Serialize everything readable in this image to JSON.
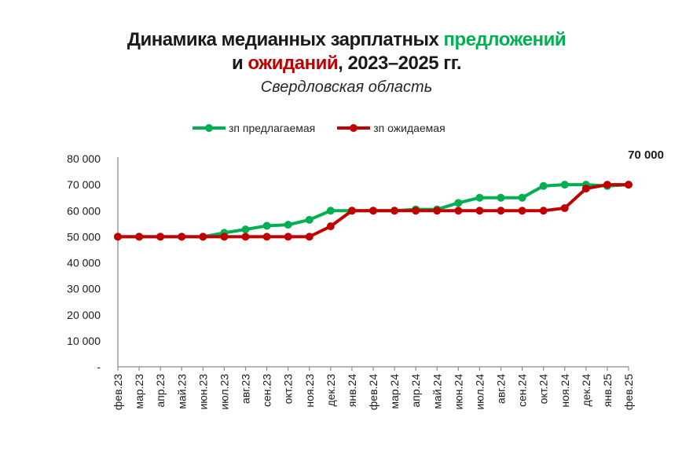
{
  "title": {
    "line1_prefix": "Динамика медианных зарплатных ",
    "line1_green": "предложений",
    "line2_prefix": "и ",
    "line2_red": "ожиданий",
    "line2_suffix": ", 2023–2025 гг.",
    "subtitle": "Свердловская область"
  },
  "legend": [
    {
      "label": "зп предлагаемая",
      "color": "#00B050"
    },
    {
      "label": "зп ожидаемая",
      "color": "#C00000"
    }
  ],
  "callout": "70 000",
  "chart_data": {
    "type": "line",
    "title": "Динамика медианных зарплатных предложений и ожиданий, 2023–2025 гг.",
    "subtitle": "Свердловская область",
    "xlabel": "",
    "ylabel": "",
    "ylim": [
      0,
      80000
    ],
    "yticks": [
      "-",
      "10 000",
      "20 000",
      "30 000",
      "40 000",
      "50 000",
      "60 000",
      "70 000",
      "80 000"
    ],
    "grid": false,
    "legend_position": "top",
    "categories": [
      "фев.23",
      "мар.23",
      "апр.23",
      "май.23",
      "июн.23",
      "июл.23",
      "авг.23",
      "сен.23",
      "окт.23",
      "ноя.23",
      "дек.23",
      "янв.24",
      "фев.24",
      "мар.24",
      "апр.24",
      "май.24",
      "июн.24",
      "июл.24",
      "авг.24",
      "сен.24",
      "окт.24",
      "ноя.24",
      "дек.24",
      "янв.25",
      "фев.25"
    ],
    "series": [
      {
        "name": "зп предлагаемая",
        "color": "#00B050",
        "values": [
          50000,
          50000,
          50000,
          50000,
          50000,
          51500,
          52800,
          54200,
          54600,
          56500,
          60000,
          60000,
          60000,
          60000,
          60500,
          60500,
          63000,
          65000,
          65000,
          65000,
          69500,
          70000,
          70000,
          69500,
          70000
        ]
      },
      {
        "name": "зп ожидаемая",
        "color": "#C00000",
        "values": [
          50000,
          50000,
          50000,
          50000,
          50000,
          50000,
          50000,
          50000,
          50000,
          50000,
          54000,
          60000,
          60000,
          60000,
          60000,
          60000,
          60000,
          60000,
          60000,
          60000,
          60000,
          61000,
          68500,
          70000,
          70000
        ]
      }
    ],
    "annotations": [
      {
        "text": "70 000",
        "category": "фев.25",
        "series": "зп ожидаемая"
      }
    ]
  }
}
